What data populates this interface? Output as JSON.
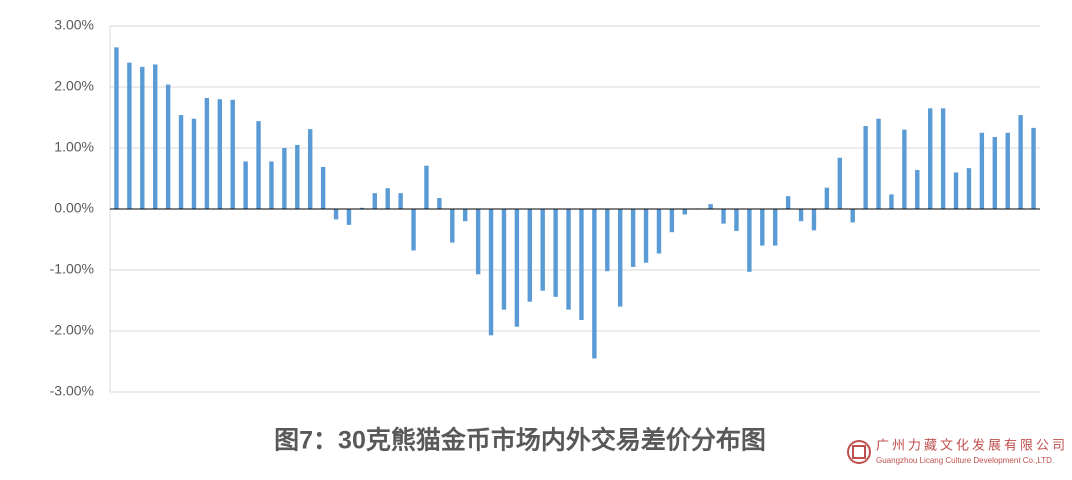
{
  "chart_data": {
    "type": "bar",
    "title": "图7：30克熊猫金币市场内外交易差价分布图",
    "categories": [
      null,
      null,
      null,
      null,
      null,
      null,
      null,
      null,
      null,
      null,
      null,
      null,
      null,
      null,
      null,
      null,
      null,
      null,
      null,
      null,
      null,
      null,
      null,
      null,
      null,
      null,
      null,
      null,
      null,
      null,
      null,
      null,
      null,
      null,
      null,
      null,
      null,
      null,
      null,
      null,
      null,
      null,
      null,
      null,
      null,
      null,
      null,
      null,
      null,
      null,
      null,
      null,
      null,
      null,
      null,
      null,
      null,
      null,
      null,
      null,
      null,
      null,
      null,
      null,
      null,
      null,
      null,
      null,
      null,
      null,
      null,
      null
    ],
    "values": [
      2.65,
      2.4,
      2.33,
      2.37,
      2.04,
      1.54,
      1.48,
      1.82,
      1.8,
      1.79,
      0.78,
      1.44,
      0.78,
      1.0,
      1.05,
      1.31,
      0.69,
      -0.17,
      -0.26,
      0.02,
      0.26,
      0.34,
      0.26,
      -0.68,
      0.71,
      0.18,
      -0.55,
      -0.2,
      -1.07,
      -2.07,
      -1.65,
      -1.93,
      -1.52,
      -1.34,
      -1.44,
      -1.65,
      -1.82,
      -2.45,
      -1.02,
      -1.6,
      -0.95,
      -0.88,
      -0.73,
      -0.38,
      -0.09,
      0.01,
      0.08,
      -0.24,
      -0.36,
      -1.03,
      -0.6,
      -0.6,
      0.21,
      -0.2,
      -0.35,
      0.35,
      0.84,
      -0.22,
      1.36,
      1.48,
      0.24,
      1.3,
      0.64,
      1.65,
      1.65,
      0.6,
      0.67,
      1.25,
      1.18,
      1.25,
      1.54,
      1.33
    ],
    "color": "#5b9bd5",
    "ylim": [
      -3,
      3
    ],
    "yticks": [
      {
        "value": -3,
        "label": "-3.00%"
      },
      {
        "value": -2,
        "label": "-2.00%"
      },
      {
        "value": -1,
        "label": "-1.00%"
      },
      {
        "value": 0,
        "label": "0.00%"
      },
      {
        "value": 1,
        "label": "1.00%"
      },
      {
        "value": 2,
        "label": "2.00%"
      },
      {
        "value": 3,
        "label": "3.00%"
      }
    ],
    "grid": true
  },
  "logo": {
    "name": "广州力藏文化发展有限公司",
    "english": "Guangzhou Licang Culture Development Co.,LTD."
  }
}
